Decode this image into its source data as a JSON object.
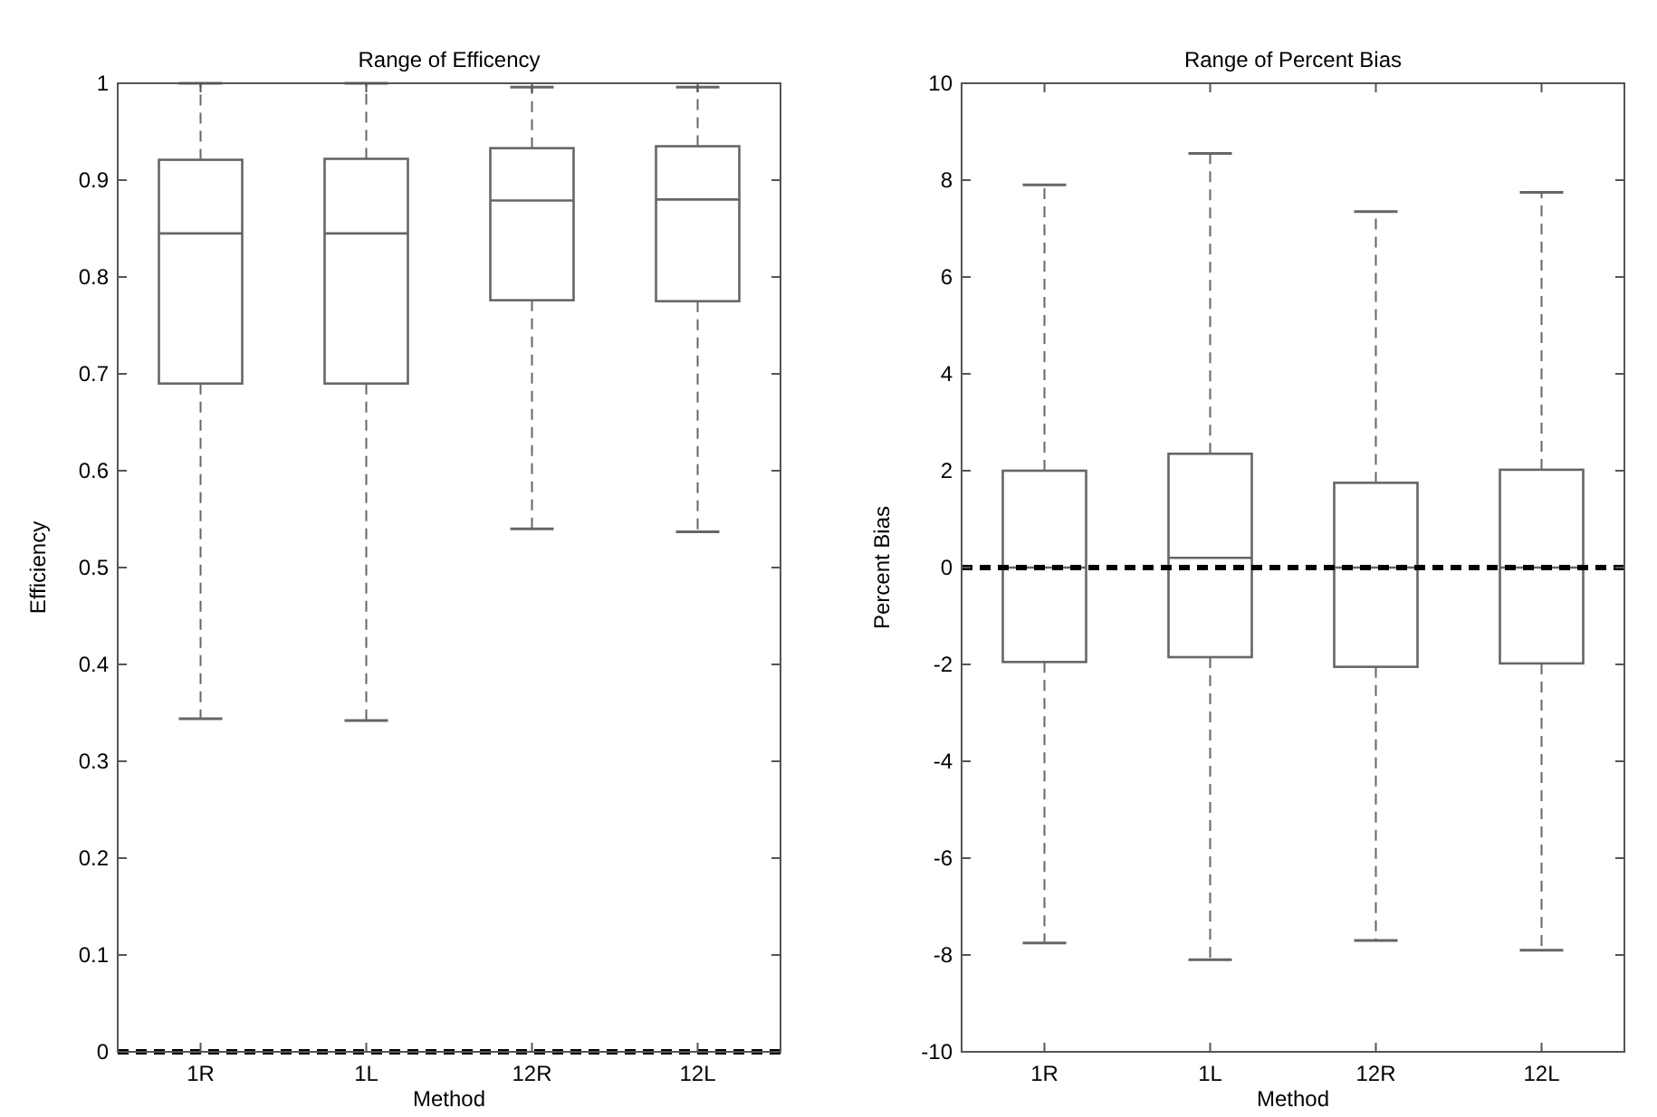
{
  "chart_data": [
    {
      "type": "box",
      "title": "Range of Efficency",
      "xlabel": "Method",
      "ylabel": "Efficiency",
      "categories": [
        "1R",
        "1L",
        "12R",
        "12L"
      ],
      "color": "#666666",
      "boxes": [
        {
          "low": 0.344,
          "q1": 0.69,
          "median": 0.845,
          "q3": 0.921,
          "high": 1
        },
        {
          "low": 0.342,
          "q1": 0.69,
          "median": 0.845,
          "q3": 0.922,
          "high": 1
        },
        {
          "low": 0.54,
          "q1": 0.776,
          "median": 0.879,
          "q3": 0.933,
          "high": 0.996
        },
        {
          "low": 0.537,
          "q1": 0.775,
          "median": 0.88,
          "q3": 0.935,
          "high": 0.996
        }
      ],
      "ylim": [
        0,
        1
      ],
      "yticks": [
        0,
        0.1,
        0.2,
        0.3,
        0.4,
        0.5,
        0.6,
        0.7,
        0.8,
        0.9,
        1
      ],
      "grid": false,
      "ref_lines": [
        {
          "axis": "y",
          "value": 0,
          "color": "#000000",
          "line_style": "dashed"
        }
      ]
    },
    {
      "type": "box",
      "title": "Range of Percent Bias",
      "xlabel": "Method",
      "ylabel": "Percent Bias",
      "categories": [
        "1R",
        "1L",
        "12R",
        "12L"
      ],
      "color": "#666666",
      "boxes": [
        {
          "low": -7.75,
          "q1": -1.95,
          "median": 0,
          "q3": 2,
          "high": 7.9
        },
        {
          "low": -8.1,
          "q1": -1.85,
          "median": 0.2,
          "q3": 2.35,
          "high": 8.55
        },
        {
          "low": -7.7,
          "q1": -2.05,
          "median": 0,
          "q3": 1.75,
          "high": 7.35
        },
        {
          "low": -7.9,
          "q1": -1.98,
          "median": 0,
          "q3": 2.02,
          "high": 7.75
        }
      ],
      "ylim": [
        -10,
        10
      ],
      "yticks": [
        -10,
        -8,
        -6,
        -4,
        -2,
        0,
        2,
        4,
        6,
        8,
        10
      ],
      "grid": false,
      "ref_lines": [
        {
          "axis": "y",
          "value": 0,
          "color": "#000000",
          "line_style": "dashed"
        }
      ]
    }
  ]
}
